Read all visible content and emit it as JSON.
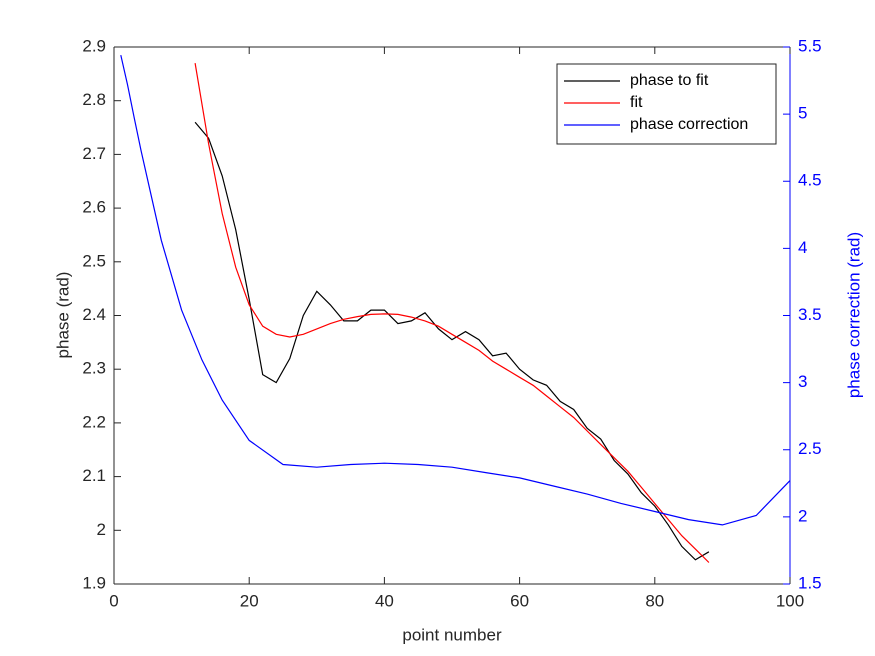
{
  "chart_data": {
    "type": "line",
    "xlabel": "point number",
    "ylabel": "phase (rad)",
    "y2label": "phase correction (rad)",
    "xlim": [
      0,
      100
    ],
    "xticks": [
      0,
      20,
      40,
      60,
      80,
      100
    ],
    "ylim": [
      1.9,
      2.9
    ],
    "yticks": [
      1.9,
      2,
      2.1,
      2.2,
      2.3,
      2.4,
      2.5,
      2.6,
      2.7,
      2.8,
      2.9
    ],
    "y2lim": [
      1.5,
      5.5
    ],
    "y2ticks": [
      1.5,
      2,
      2.5,
      3,
      3.5,
      4,
      4.5,
      5,
      5.5
    ],
    "y2color": "#0000ff",
    "legend": "upper right",
    "series": [
      {
        "name": "phase to fit",
        "color": "#000000",
        "x": [
          12,
          14,
          16,
          18,
          20,
          22,
          24,
          26,
          28,
          30,
          32,
          34,
          36,
          38,
          40,
          42,
          44,
          46,
          48,
          50,
          52,
          54,
          56,
          58,
          60,
          62,
          64,
          66,
          68,
          70,
          72,
          74,
          76,
          78,
          80,
          82,
          84,
          86,
          88
        ],
        "values": [
          2.76,
          2.73,
          2.66,
          2.56,
          2.43,
          2.29,
          2.275,
          2.32,
          2.4,
          2.445,
          2.42,
          2.39,
          2.39,
          2.41,
          2.41,
          2.385,
          2.39,
          2.405,
          2.375,
          2.355,
          2.37,
          2.355,
          2.325,
          2.33,
          2.3,
          2.28,
          2.27,
          2.24,
          2.225,
          2.19,
          2.17,
          2.13,
          2.105,
          2.07,
          2.045,
          2.01,
          1.97,
          1.945,
          1.96
        ]
      },
      {
        "name": "fit",
        "color": "#ff0000",
        "x": [
          12,
          14,
          16,
          18,
          20,
          22,
          24,
          26,
          28,
          30,
          32,
          34,
          36,
          38,
          40,
          42,
          44,
          46,
          48,
          50,
          52,
          54,
          56,
          58,
          60,
          62,
          64,
          66,
          68,
          70,
          72,
          74,
          76,
          78,
          80,
          82,
          84,
          86,
          88
        ],
        "values": [
          2.87,
          2.72,
          2.59,
          2.49,
          2.42,
          2.38,
          2.365,
          2.36,
          2.365,
          2.375,
          2.385,
          2.393,
          2.398,
          2.402,
          2.403,
          2.402,
          2.397,
          2.39,
          2.38,
          2.365,
          2.35,
          2.335,
          2.315,
          2.3,
          2.285,
          2.27,
          2.25,
          2.23,
          2.21,
          2.185,
          2.16,
          2.135,
          2.11,
          2.08,
          2.05,
          2.02,
          1.99,
          1.965,
          1.94
        ]
      },
      {
        "name": "phase correction",
        "color": "#0000ff",
        "axis": "y2",
        "x": [
          1,
          2,
          3,
          4,
          7,
          10,
          13,
          16,
          20,
          25,
          30,
          35,
          40,
          45,
          50,
          55,
          60,
          65,
          70,
          75,
          80,
          85,
          90,
          95,
          100
        ],
        "values": [
          5.44,
          5.22,
          4.97,
          4.73,
          4.06,
          3.54,
          3.17,
          2.87,
          2.57,
          2.39,
          2.37,
          2.39,
          2.4,
          2.39,
          2.37,
          2.33,
          2.29,
          2.23,
          2.17,
          2.1,
          2.04,
          1.98,
          1.94,
          2.01,
          2.27
        ]
      }
    ]
  }
}
